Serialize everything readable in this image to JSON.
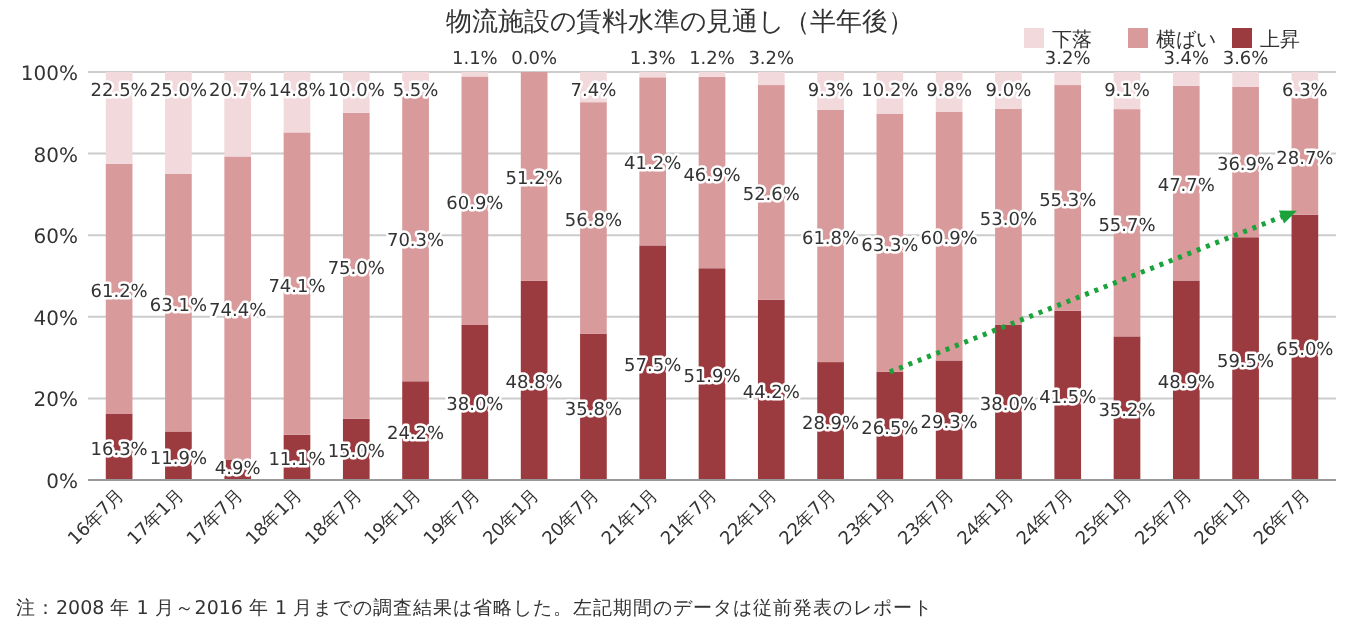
{
  "chart_data": {
    "type": "bar",
    "title": "物流施設の賃料水準の見通し（半年後）",
    "stacked": true,
    "grid": "y",
    "legend": "top right",
    "categories": [
      "16年7月",
      "17年1月",
      "17年7月",
      "18年1月",
      "18年7月",
      "19年1月",
      "19年7月",
      "20年1月",
      "20年7月",
      "21年1月",
      "21年7月",
      "22年1月",
      "22年7月",
      "23年1月",
      "23年7月",
      "24年1月",
      "24年7月",
      "25年1月",
      "25年7月",
      "26年1月",
      "26年7月"
    ],
    "series": [
      {
        "name": "上昇",
        "color": "#9b3a3f",
        "values": [
          16.3,
          11.9,
          4.9,
          11.1,
          15.0,
          24.2,
          38.0,
          48.8,
          35.8,
          57.5,
          51.9,
          44.2,
          28.9,
          26.5,
          29.3,
          38.0,
          41.5,
          35.2,
          48.9,
          59.5,
          65.0
        ],
        "value_labels": [
          "16.3%",
          "11.9%",
          "4.9%",
          "11.1%",
          "15.0%",
          "24.2%",
          "38.0%",
          "48.8%",
          "35.8%",
          "57.5%",
          "51.9%",
          "44.2%",
          "28.9%",
          "26.5%",
          "29.3%",
          "38.0%",
          "41.5%",
          "35.2%",
          "48.9%",
          "59.5%",
          "65.0%"
        ]
      },
      {
        "name": "横ばい",
        "color": "#d99a9c",
        "values": [
          61.2,
          63.1,
          74.4,
          74.1,
          75.0,
          70.3,
          60.9,
          51.2,
          56.8,
          41.2,
          46.9,
          52.6,
          61.8,
          63.3,
          60.9,
          53.0,
          55.3,
          55.7,
          47.7,
          36.9,
          28.7
        ],
        "value_labels": [
          "61.2%",
          "63.1%",
          "74.4%",
          "74.1%",
          "75.0%",
          "70.3%",
          "60.9%",
          "51.2%",
          "56.8%",
          "41.2%",
          "46.9%",
          "52.6%",
          "61.8%",
          "63.3%",
          "60.9%",
          "53.0%",
          "55.3%",
          "55.7%",
          "47.7%",
          "36.9%",
          "28.7%"
        ]
      },
      {
        "name": "下落",
        "color": "#f2d9dc",
        "values": [
          22.5,
          25.0,
          20.7,
          14.8,
          10.0,
          5.5,
          1.1,
          0.0,
          7.4,
          1.3,
          1.2,
          3.2,
          9.3,
          10.2,
          9.8,
          9.0,
          3.2,
          9.1,
          3.4,
          3.6,
          6.3
        ],
        "value_labels": [
          "22.5%",
          "25.0%",
          "20.7%",
          "14.8%",
          "10.0%",
          "5.5%",
          "1.1%",
          "0.0%",
          "7.4%",
          "1.3%",
          "1.2%",
          "3.2%",
          "9.3%",
          "10.2%",
          "9.8%",
          "9.0%",
          "3.2%",
          "9.1%",
          "3.4%",
          "3.6%",
          "6.3%"
        ]
      }
    ],
    "ylim": [
      0,
      100
    ],
    "yticks": [
      {
        "value": 0,
        "label": "0%"
      },
      {
        "value": 20,
        "label": "20%"
      },
      {
        "value": 40,
        "label": "40%"
      },
      {
        "value": 60,
        "label": "60%"
      },
      {
        "value": 80,
        "label": "80%"
      },
      {
        "value": 100,
        "label": "100%"
      }
    ],
    "annotations": [
      "注：2008 年 1 月～2016 年 1 月までの調査結果は省略した。左記期間のデータは従前発表のレポート"
    ]
  }
}
